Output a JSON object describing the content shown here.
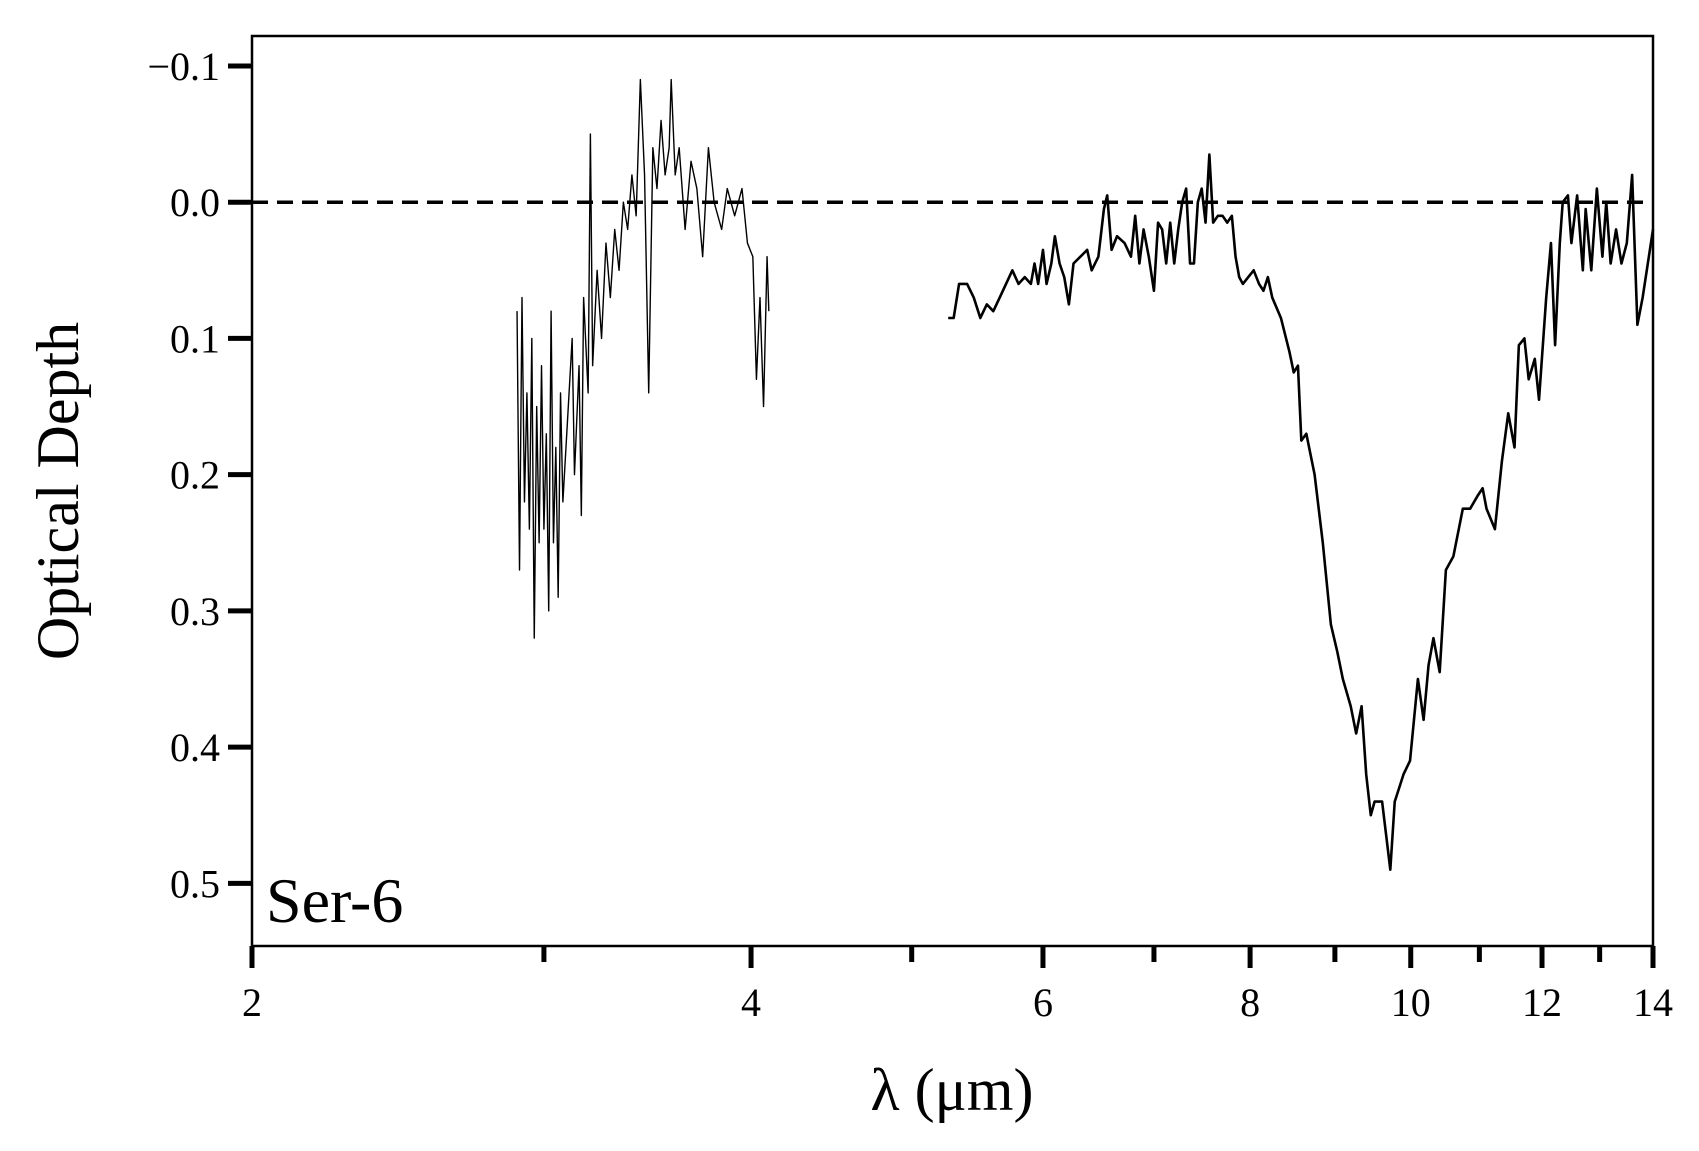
{
  "chart_data": {
    "type": "line",
    "xlabel": "λ (μm)",
    "ylabel": "Optical Depth",
    "annotation": "Ser-6",
    "xscale": "log",
    "xlim": [
      2,
      14
    ],
    "xticks": [
      2,
      4,
      6,
      8,
      10,
      12,
      14
    ],
    "xminor_ticks": [
      3,
      5,
      7,
      9,
      11,
      13
    ],
    "ylim": [
      0.546,
      -0.122
    ],
    "yticks": [
      {
        "value": -0.1,
        "label": "−0.1"
      },
      {
        "value": 0,
        "label": "0.0"
      },
      0.1,
      0.2,
      0.3,
      0.4,
      0.5
    ],
    "reference_line": 0,
    "grid": false,
    "series": [
      {
        "color": "#000000",
        "x": [
          2.89,
          2.9,
          2.91,
          2.92,
          2.93,
          2.94,
          2.95,
          2.96,
          2.97,
          2.98,
          2.99,
          3.0,
          3.01,
          3.02,
          3.03,
          3.04,
          3.05,
          3.06,
          3.07,
          3.08,
          3.1,
          3.12,
          3.13,
          3.15,
          3.16,
          3.17,
          3.19,
          3.2,
          3.21,
          3.23,
          3.25,
          3.27,
          3.29,
          3.31,
          3.33,
          3.35,
          3.37,
          3.39,
          3.41,
          3.43,
          3.45,
          3.47,
          3.49,
          3.51,
          3.53,
          3.55,
          3.57,
          3.58,
          3.6,
          3.62,
          3.65,
          3.68,
          3.71,
          3.74,
          3.77,
          3.8,
          3.84,
          3.87,
          3.91,
          3.95,
          3.98,
          4.01,
          4.03,
          4.05,
          4.07,
          4.09,
          4.1
        ],
        "values": [
          0.08,
          0.27,
          0.07,
          0.22,
          0.14,
          0.24,
          0.1,
          0.32,
          0.15,
          0.25,
          0.12,
          0.24,
          0.17,
          0.3,
          0.08,
          0.25,
          0.18,
          0.29,
          0.14,
          0.22,
          0.16,
          0.1,
          0.2,
          0.12,
          0.23,
          0.07,
          0.14,
          -0.05,
          0.12,
          0.05,
          0.1,
          0.03,
          0.07,
          0.02,
          0.05,
          0.0,
          0.02,
          -0.02,
          0.01,
          -0.09,
          -0.02,
          0.14,
          -0.04,
          -0.01,
          -0.06,
          -0.02,
          -0.04,
          -0.09,
          -0.02,
          -0.04,
          0.02,
          -0.03,
          -0.01,
          0.04,
          -0.04,
          0.0,
          0.02,
          -0.01,
          0.01,
          -0.01,
          0.03,
          0.04,
          0.13,
          0.07,
          0.15,
          0.04,
          0.08
        ]
      },
      {
        "color": "#000000",
        "x": [
          5.26,
          5.3,
          5.34,
          5.4,
          5.45,
          5.5,
          5.55,
          5.6,
          5.65,
          5.7,
          5.75,
          5.8,
          5.85,
          5.9,
          5.93,
          5.96,
          6.0,
          6.03,
          6.07,
          6.1,
          6.14,
          6.18,
          6.22,
          6.26,
          6.32,
          6.38,
          6.42,
          6.48,
          6.53,
          6.56,
          6.6,
          6.65,
          6.72,
          6.78,
          6.82,
          6.86,
          6.9,
          6.95,
          7.0,
          7.04,
          7.08,
          7.12,
          7.16,
          7.2,
          7.24,
          7.28,
          7.32,
          7.36,
          7.4,
          7.44,
          7.48,
          7.52,
          7.56,
          7.6,
          7.65,
          7.7,
          7.75,
          7.8,
          7.84,
          7.88,
          7.92,
          7.98,
          8.04,
          8.1,
          8.15,
          8.2,
          8.25,
          8.35,
          8.45,
          8.5,
          8.55,
          8.59,
          8.65,
          8.75,
          8.85,
          8.95,
          9.03,
          9.1,
          9.2,
          9.27,
          9.34,
          9.4,
          9.46,
          9.51,
          9.61,
          9.72,
          9.78,
          9.84,
          9.9,
          9.99,
          10.1,
          10.18,
          10.25,
          10.32,
          10.41,
          10.5,
          10.61,
          10.75,
          10.86,
          10.98,
          11.05,
          11.11,
          11.24,
          11.35,
          11.45,
          11.55,
          11.62,
          11.71,
          11.78,
          11.88,
          11.95,
          12.07,
          12.15,
          12.22,
          12.3,
          12.35,
          12.44,
          12.5,
          12.6,
          12.7,
          12.75,
          12.85,
          12.95,
          13.05,
          13.12,
          13.2,
          13.3,
          13.4,
          13.5,
          13.6,
          13.7,
          13.8,
          14.0
        ],
        "values": [
          0.085,
          0.085,
          0.06,
          0.06,
          0.07,
          0.085,
          0.075,
          0.08,
          0.07,
          0.06,
          0.05,
          0.06,
          0.055,
          0.06,
          0.045,
          0.06,
          0.035,
          0.06,
          0.045,
          0.025,
          0.045,
          0.055,
          0.075,
          0.045,
          0.04,
          0.035,
          0.05,
          0.04,
          0.005,
          -0.005,
          0.035,
          0.025,
          0.03,
          0.04,
          0.01,
          0.045,
          0.02,
          0.04,
          0.065,
          0.015,
          0.02,
          0.045,
          0.015,
          0.045,
          0.02,
          0.0,
          -0.01,
          0.045,
          0.045,
          0.0,
          -0.01,
          0.015,
          -0.035,
          0.015,
          0.01,
          0.01,
          0.015,
          0.01,
          0.04,
          0.055,
          0.06,
          0.055,
          0.05,
          0.06,
          0.065,
          0.055,
          0.07,
          0.085,
          0.11,
          0.125,
          0.12,
          0.175,
          0.17,
          0.2,
          0.25,
          0.31,
          0.33,
          0.35,
          0.37,
          0.39,
          0.37,
          0.42,
          0.45,
          0.44,
          0.44,
          0.49,
          0.44,
          0.43,
          0.42,
          0.41,
          0.35,
          0.38,
          0.34,
          0.32,
          0.345,
          0.27,
          0.26,
          0.225,
          0.225,
          0.215,
          0.21,
          0.225,
          0.24,
          0.19,
          0.155,
          0.18,
          0.105,
          0.1,
          0.13,
          0.115,
          0.145,
          0.07,
          0.03,
          0.105,
          0.03,
          0.0,
          -0.005,
          0.03,
          -0.005,
          0.05,
          0.005,
          0.05,
          -0.01,
          0.04,
          0.0,
          0.045,
          0.02,
          0.045,
          0.03,
          -0.02,
          0.09,
          0.07,
          0.02
        ]
      }
    ]
  }
}
